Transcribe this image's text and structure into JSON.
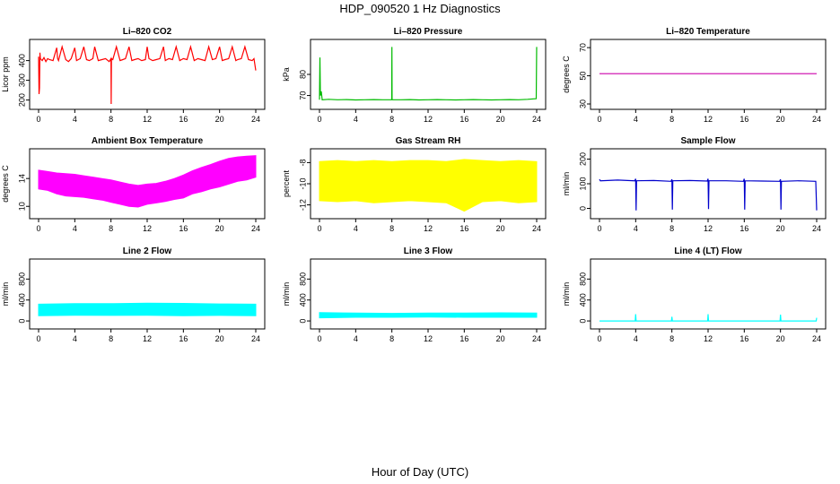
{
  "title": "HDP_090520  1 Hz Diagnostics",
  "footer_xlabel": "Hour of Day (UTC)",
  "chart_data": [
    {
      "type": "line",
      "title": "Li–820 CO2",
      "ylabel": "Licor ppm",
      "color": "#ff0000",
      "xlim": [
        0,
        24
      ],
      "xticks": [
        0,
        4,
        8,
        12,
        16,
        20,
        24
      ],
      "ylim": [
        180,
        480
      ],
      "yticks": [
        200,
        300,
        400
      ],
      "series": [
        {
          "x": [
            0,
            0.05,
            0.1,
            0.15,
            0.2,
            0.3,
            0.4,
            0.6,
            0.8,
            1.0,
            1.2,
            1.6,
            2.0,
            2.1,
            2.2,
            2.6,
            3.0,
            3.3,
            3.6,
            4.0,
            4.2,
            4.6,
            5.0,
            5.3,
            5.6,
            6.0,
            6.2,
            6.6,
            7.0,
            7.4,
            7.8,
            8.0,
            8.02,
            8.05,
            8.2,
            8.6,
            9.0,
            9.3,
            9.6,
            10.0,
            10.3,
            10.6,
            11.0,
            11.4,
            11.8,
            12.0,
            12.2,
            12.6,
            13.0,
            13.4,
            13.8,
            14.0,
            14.4,
            14.8,
            15.2,
            15.6,
            16.0,
            16.4,
            16.8,
            17.2,
            17.6,
            18.0,
            18.4,
            18.8,
            19.2,
            19.6,
            20.0,
            20.3,
            20.6,
            21.0,
            21.4,
            21.8,
            22.0,
            22.4,
            22.8,
            23.2,
            23.6,
            23.8,
            24.0
          ],
          "y": [
            420,
            230,
            260,
            440,
            410,
            405,
            400,
            415,
            395,
            410,
            405,
            400,
            465,
            410,
            400,
            470,
            405,
            395,
            410,
            465,
            400,
            410,
            470,
            405,
            400,
            410,
            470,
            400,
            405,
            410,
            395,
            410,
            180,
            410,
            405,
            470,
            400,
            405,
            410,
            470,
            400,
            405,
            410,
            400,
            405,
            470,
            410,
            400,
            405,
            410,
            470,
            400,
            410,
            405,
            470,
            400,
            410,
            405,
            470,
            400,
            410,
            405,
            400,
            470,
            405,
            410,
            470,
            400,
            405,
            410,
            470,
            400,
            405,
            410,
            470,
            405,
            400,
            410,
            350
          ]
        }
      ]
    },
    {
      "type": "line",
      "title": "Li–820 Pressure",
      "ylabel": "kPa",
      "color": "#00bb00",
      "xlim": [
        0,
        24
      ],
      "xticks": [
        0,
        4,
        8,
        12,
        16,
        20,
        24
      ],
      "ylim": [
        66,
        94
      ],
      "yticks": [
        70,
        80
      ],
      "series": [
        {
          "x": [
            0,
            0.05,
            0.1,
            0.2,
            0.3,
            1,
            2,
            3,
            4,
            5,
            6,
            7,
            7.98,
            8.0,
            8.02,
            9,
            10,
            11,
            12,
            13,
            14,
            15,
            16,
            17,
            18,
            19,
            20,
            21,
            22,
            23,
            23.95,
            24.0
          ],
          "y": [
            68,
            88,
            70,
            72,
            68,
            68.2,
            68,
            68.1,
            67.9,
            68,
            68.1,
            68,
            68,
            93,
            68,
            68,
            68.1,
            67.9,
            68,
            68.1,
            68,
            67.9,
            68,
            68.1,
            68,
            67.9,
            68,
            68.1,
            68,
            68.2,
            68.5,
            93
          ]
        }
      ]
    },
    {
      "type": "line",
      "title": "Li–820 Temperature",
      "ylabel": "degrees C",
      "color": "#cc00aa",
      "xlim": [
        0,
        24
      ],
      "xticks": [
        0,
        4,
        8,
        12,
        16,
        20,
        24
      ],
      "ylim": [
        30,
        72
      ],
      "yticks": [
        30,
        50,
        70
      ],
      "series": [
        {
          "x": [
            0,
            24
          ],
          "y": [
            51.5,
            51.5
          ]
        }
      ]
    },
    {
      "type": "area",
      "title": "Ambient Box Temperature",
      "ylabel": "degrees C",
      "color": "#ff00ff",
      "xlim": [
        0,
        24
      ],
      "xticks": [
        0,
        4,
        8,
        12,
        16,
        20,
        24
      ],
      "ylim": [
        9,
        17.5
      ],
      "yticks": [
        10,
        14
      ],
      "series": [
        {
          "x": [
            0,
            1,
            2,
            3,
            4,
            5,
            6,
            7,
            8,
            9,
            10,
            11,
            12,
            13,
            14,
            15,
            16,
            17,
            18,
            19,
            20,
            21,
            22,
            23,
            24
          ],
          "ymax": [
            15.2,
            15.0,
            14.8,
            14.7,
            14.6,
            14.4,
            14.2,
            14.0,
            13.8,
            13.5,
            13.2,
            13.0,
            13.2,
            13.3,
            13.6,
            14.0,
            14.5,
            15.1,
            15.6,
            16.0,
            16.5,
            16.9,
            17.1,
            17.2,
            17.3
          ],
          "ymin": [
            12.5,
            12.3,
            11.8,
            11.5,
            11.4,
            11.3,
            11.1,
            10.9,
            10.6,
            10.3,
            10.0,
            9.9,
            10.3,
            10.5,
            10.7,
            11.0,
            11.2,
            11.8,
            12.1,
            12.5,
            12.8,
            13.2,
            13.6,
            13.8,
            14.2
          ]
        }
      ]
    },
    {
      "type": "area",
      "title": "Gas Stream RH",
      "ylabel": "percent",
      "color": "#ffff00",
      "xlim": [
        0,
        24
      ],
      "xticks": [
        0,
        4,
        8,
        12,
        16,
        20,
        24
      ],
      "ylim": [
        -12.8,
        -7.2
      ],
      "yticks": [
        -12,
        -10,
        -8
      ],
      "series": [
        {
          "x": [
            0,
            2,
            4,
            6,
            8,
            10,
            12,
            14,
            16,
            18,
            20,
            22,
            24
          ],
          "ymax": [
            -7.9,
            -7.8,
            -7.9,
            -7.8,
            -7.9,
            -7.8,
            -7.8,
            -7.9,
            -7.7,
            -7.8,
            -7.9,
            -7.8,
            -7.9
          ],
          "ymin": [
            -11.6,
            -11.7,
            -11.6,
            -11.8,
            -11.7,
            -11.6,
            -11.7,
            -11.8,
            -12.6,
            -11.7,
            -11.6,
            -11.8,
            -11.7
          ]
        }
      ]
    },
    {
      "type": "line",
      "title": "Sample Flow",
      "ylabel": "ml/min",
      "color": "#0000cc",
      "xlim": [
        0,
        24
      ],
      "xticks": [
        0,
        4,
        8,
        12,
        16,
        20,
        24
      ],
      "ylim": [
        -20,
        220
      ],
      "yticks": [
        0,
        100,
        200
      ],
      "series": [
        {
          "x": [
            0,
            0.1,
            2,
            3.9,
            4.0,
            4.05,
            4.1,
            6,
            7.9,
            8.0,
            8.05,
            8.1,
            10,
            11.9,
            12.0,
            12.05,
            12.1,
            14,
            15.9,
            16.0,
            16.05,
            16.1,
            18,
            19.9,
            20.0,
            20.05,
            20.1,
            22,
            23.9,
            24.0
          ],
          "y": [
            118,
            112,
            115,
            112,
            120,
            -8,
            112,
            113,
            110,
            118,
            -5,
            112,
            113,
            111,
            120,
            -3,
            112,
            112,
            110,
            120,
            -5,
            112,
            111,
            110,
            118,
            -5,
            110,
            112,
            110,
            -8
          ]
        }
      ]
    },
    {
      "type": "area",
      "title": "Line 2 Flow",
      "ylabel": "ml/min",
      "color": "#00ffff",
      "xlim": [
        0,
        24
      ],
      "xticks": [
        0,
        4,
        8,
        12,
        16,
        20,
        24
      ],
      "ylim": [
        -50,
        1080
      ],
      "yticks": [
        0,
        400,
        800
      ],
      "series": [
        {
          "x": [
            0,
            4,
            8,
            12,
            16,
            20,
            24
          ],
          "ymax": [
            320,
            330,
            330,
            340,
            335,
            325,
            320
          ],
          "ymin": [
            100,
            110,
            105,
            110,
            100,
            105,
            100
          ]
        }
      ]
    },
    {
      "type": "area",
      "title": "Line 3 Flow",
      "ylabel": "ml/min",
      "color": "#00ffff",
      "xlim": [
        0,
        24
      ],
      "xticks": [
        0,
        4,
        8,
        12,
        16,
        20,
        24
      ],
      "ylim": [
        -50,
        1080
      ],
      "yticks": [
        0,
        400,
        800
      ],
      "series": [
        {
          "x": [
            0,
            4,
            8,
            12,
            16,
            20,
            24
          ],
          "ymax": [
            160,
            150,
            145,
            150,
            150,
            155,
            150
          ],
          "ymin": [
            60,
            70,
            70,
            75,
            70,
            70,
            70
          ]
        }
      ]
    },
    {
      "type": "line",
      "title": "Line 4 (LT) Flow",
      "ylabel": "ml/min",
      "color": "#00ffff",
      "xlim": [
        0,
        24
      ],
      "xticks": [
        0,
        4,
        8,
        12,
        16,
        20,
        24
      ],
      "ylim": [
        -50,
        1080
      ],
      "yticks": [
        0,
        400,
        800
      ],
      "series": [
        {
          "x": [
            0,
            3.95,
            4.0,
            4.05,
            7.95,
            8.0,
            8.05,
            11.95,
            12.0,
            12.05,
            19.95,
            20.0,
            20.05,
            23.95,
            24.0
          ],
          "y": [
            0,
            0,
            130,
            0,
            0,
            80,
            0,
            0,
            130,
            0,
            0,
            120,
            0,
            0,
            60
          ]
        }
      ]
    }
  ]
}
